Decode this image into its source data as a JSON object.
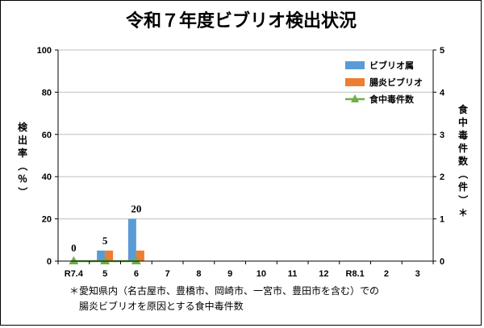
{
  "chart_data": {
    "type": "bar",
    "title": "令和７年度ビブリオ検出状況",
    "categories": [
      "R7.4",
      "5",
      "6",
      "7",
      "8",
      "9",
      "10",
      "11",
      "12",
      "R8.1",
      "2",
      "3"
    ],
    "series": [
      {
        "name": "ビブリオ属",
        "type": "bar",
        "axis": "left",
        "color": "#5B9BD5",
        "values": [
          0,
          5,
          20,
          null,
          null,
          null,
          null,
          null,
          null,
          null,
          null,
          null
        ]
      },
      {
        "name": "腸炎ビブリオ",
        "type": "bar",
        "axis": "left",
        "color": "#ED7D31",
        "values": [
          0,
          5,
          5,
          null,
          null,
          null,
          null,
          null,
          null,
          null,
          null,
          null
        ]
      },
      {
        "name": "食中毒件数",
        "type": "line",
        "axis": "right",
        "color": "#70AD47",
        "marker": "triangle",
        "values": [
          0,
          0,
          0,
          null,
          null,
          null,
          null,
          null,
          null,
          null,
          null,
          null
        ]
      }
    ],
    "data_labels": [
      {
        "category": "R7.4",
        "text": "0"
      },
      {
        "category": "5",
        "text": "5"
      },
      {
        "category": "6",
        "text": "20"
      }
    ],
    "ylabel": "検出率（％）",
    "y2label": "食中毒件数（件）＊",
    "ylim": [
      0,
      100
    ],
    "y2lim": [
      0,
      5
    ],
    "yticks": [
      "0",
      "20",
      "40",
      "60",
      "80",
      "100"
    ],
    "y2ticks": [
      "0",
      "1",
      "2",
      "3",
      "4",
      "5"
    ],
    "grid": true,
    "legend_position": "top-right"
  },
  "note": {
    "line1": "＊愛知県内（名古屋市、豊橋市、岡崎市、一宮市、豊田市を含む）での",
    "line2": "腸炎ビブリオを原因とする食中毒件数"
  }
}
